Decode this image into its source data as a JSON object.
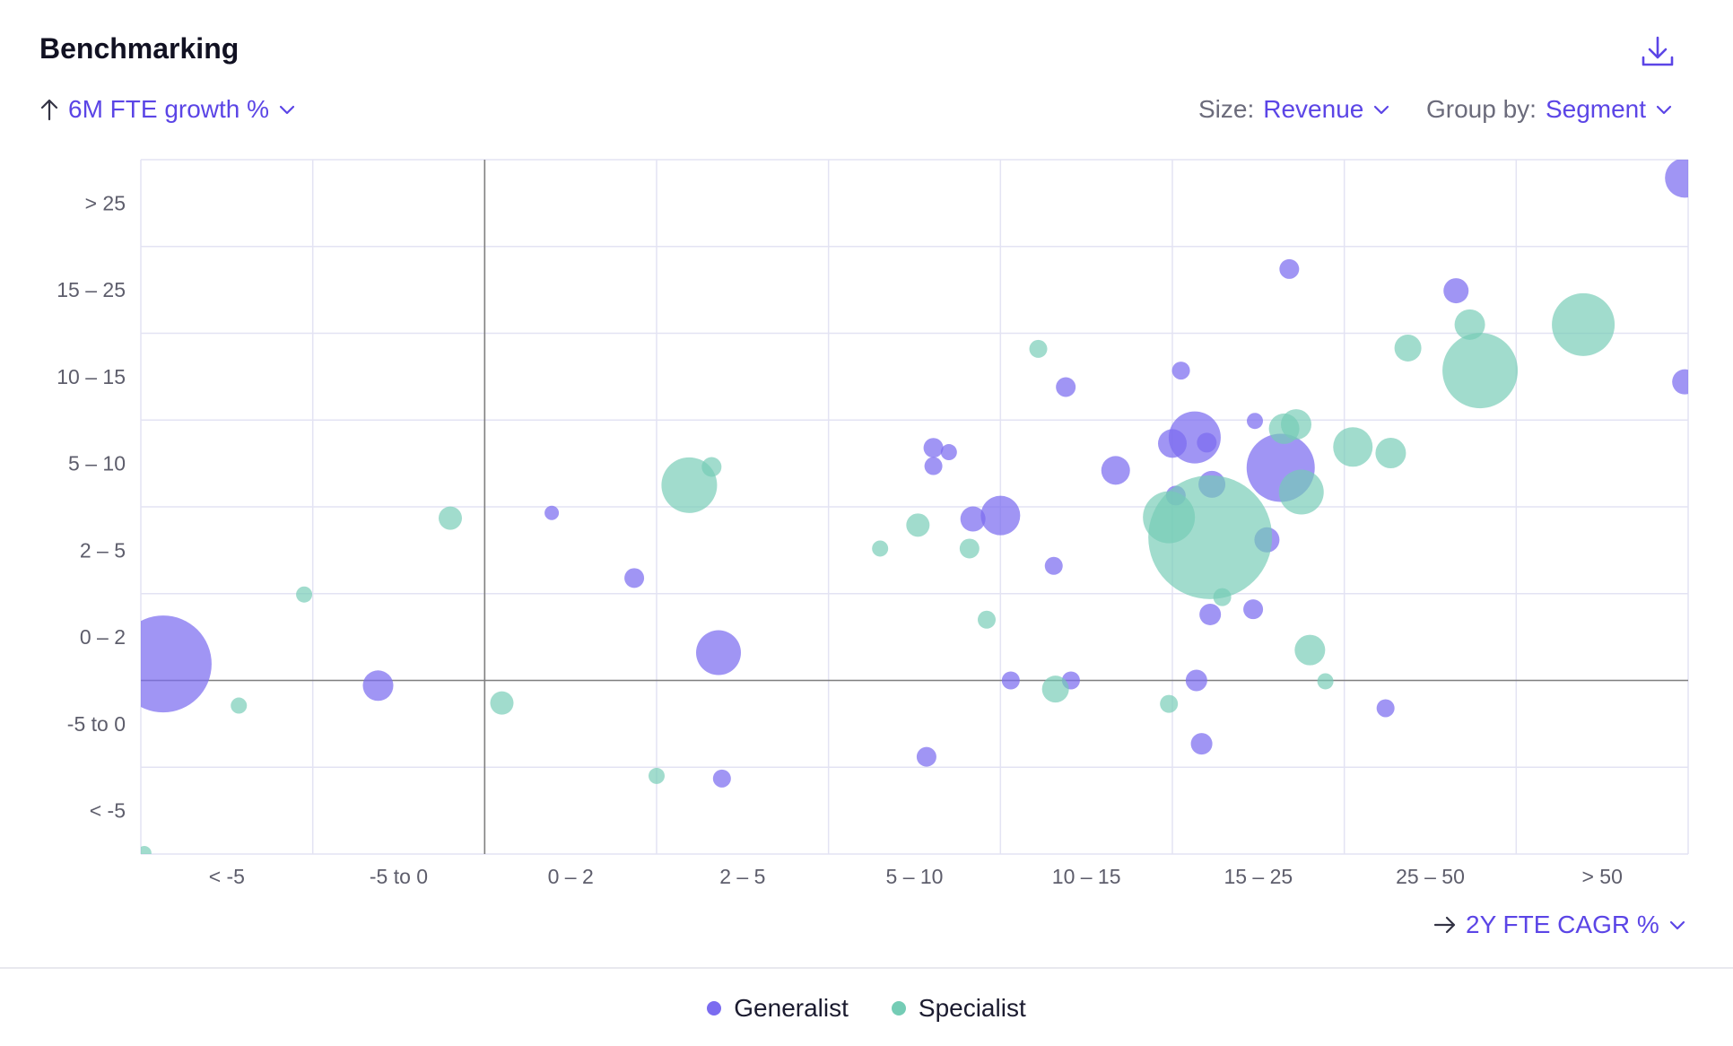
{
  "header": {
    "title": "Benchmarking",
    "download_icon": "download-icon"
  },
  "controls": {
    "y_metric": {
      "arrow_icon": "arrow-up-icon",
      "value": "6M FTE growth %"
    },
    "size": {
      "label": "Size:",
      "value": "Revenue"
    },
    "group_by": {
      "label": "Group by:",
      "value": "Segment"
    },
    "x_metric": {
      "arrow_icon": "arrow-right-icon",
      "value": "2Y FTE CAGR %"
    }
  },
  "colors": {
    "generalist": "#7b6cf0",
    "specialist": "#74ccb5",
    "accent": "#5b45e6",
    "grid": "#e3e3f3",
    "axis": "#808080"
  },
  "legend": [
    {
      "label": "Generalist",
      "color": "#7b6cf0"
    },
    {
      "label": "Specialist",
      "color": "#74ccb5"
    }
  ],
  "chart_data": {
    "type": "scatter",
    "xlabel": "2Y FTE CAGR %",
    "ylabel": "6M FTE growth %",
    "size_by": "Revenue",
    "x_categories": [
      "< -5",
      "-5 to 0",
      "0 – 2",
      "2 – 5",
      "5 – 10",
      "10 – 15",
      "15 – 25",
      "25 – 50",
      "> 50"
    ],
    "y_categories": [
      "< -5",
      "-5 to 0",
      "0 – 2",
      "2 – 5",
      "5 – 10",
      "10 – 15",
      "15 – 25",
      "> 25"
    ],
    "series": [
      {
        "name": "Generalist",
        "points": [
          {
            "x": 0.13,
            "y": 2.19,
            "r": 54
          },
          {
            "x": 1.38,
            "y": 1.94,
            "r": 17
          },
          {
            "x": 2.39,
            "y": 3.93,
            "r": 8
          },
          {
            "x": 2.87,
            "y": 3.18,
            "r": 11
          },
          {
            "x": 3.36,
            "y": 2.32,
            "r": 25
          },
          {
            "x": 3.38,
            "y": 0.87,
            "r": 10
          },
          {
            "x": 4.57,
            "y": 1.12,
            "r": 11
          },
          {
            "x": 4.61,
            "y": 4.68,
            "r": 11
          },
          {
            "x": 4.61,
            "y": 4.47,
            "r": 10
          },
          {
            "x": 4.7,
            "y": 4.63,
            "r": 9
          },
          {
            "x": 4.84,
            "y": 3.86,
            "r": 14
          },
          {
            "x": 5.0,
            "y": 3.9,
            "r": 22
          },
          {
            "x": 5.06,
            "y": 2.0,
            "r": 10
          },
          {
            "x": 5.31,
            "y": 3.32,
            "r": 10
          },
          {
            "x": 5.38,
            "y": 5.38,
            "r": 11
          },
          {
            "x": 5.41,
            "y": 2.0,
            "r": 10
          },
          {
            "x": 5.67,
            "y": 4.42,
            "r": 16
          },
          {
            "x": 6.0,
            "y": 4.73,
            "r": 16
          },
          {
            "x": 6.02,
            "y": 4.13,
            "r": 11
          },
          {
            "x": 6.05,
            "y": 5.57,
            "r": 10
          },
          {
            "x": 6.13,
            "y": 4.8,
            "r": 29
          },
          {
            "x": 6.14,
            "y": 2.0,
            "r": 12
          },
          {
            "x": 6.17,
            "y": 1.27,
            "r": 12
          },
          {
            "x": 6.2,
            "y": 4.74,
            "r": 11
          },
          {
            "x": 6.22,
            "y": 2.76,
            "r": 12
          },
          {
            "x": 6.23,
            "y": 4.26,
            "r": 15
          },
          {
            "x": 6.47,
            "y": 2.82,
            "r": 11
          },
          {
            "x": 6.48,
            "y": 4.99,
            "r": 9
          },
          {
            "x": 6.55,
            "y": 3.62,
            "r": 14
          },
          {
            "x": 6.63,
            "y": 4.45,
            "r": 38
          },
          {
            "x": 6.68,
            "y": 6.74,
            "r": 11
          },
          {
            "x": 7.24,
            "y": 1.68,
            "r": 10
          },
          {
            "x": 7.65,
            "y": 6.49,
            "r": 14
          },
          {
            "x": 8.98,
            "y": 7.79,
            "r": 22
          },
          {
            "x": 8.98,
            "y": 5.44,
            "r": 14
          }
        ]
      },
      {
        "name": "Specialist",
        "points": [
          {
            "x": 0.02,
            "y": 0.01,
            "r": 8
          },
          {
            "x": 0.57,
            "y": 1.71,
            "r": 9
          },
          {
            "x": 0.95,
            "y": 2.99,
            "r": 9
          },
          {
            "x": 1.8,
            "y": 3.87,
            "r": 13
          },
          {
            "x": 2.1,
            "y": 1.74,
            "r": 13
          },
          {
            "x": 3.0,
            "y": 0.9,
            "r": 9
          },
          {
            "x": 3.19,
            "y": 4.25,
            "r": 31
          },
          {
            "x": 3.32,
            "y": 4.46,
            "r": 11
          },
          {
            "x": 4.3,
            "y": 3.52,
            "r": 9
          },
          {
            "x": 4.52,
            "y": 3.79,
            "r": 13
          },
          {
            "x": 4.82,
            "y": 3.52,
            "r": 11
          },
          {
            "x": 4.92,
            "y": 2.7,
            "r": 10
          },
          {
            "x": 5.22,
            "y": 5.82,
            "r": 10
          },
          {
            "x": 5.32,
            "y": 1.9,
            "r": 15
          },
          {
            "x": 5.98,
            "y": 1.73,
            "r": 10
          },
          {
            "x": 5.98,
            "y": 3.88,
            "r": 29
          },
          {
            "x": 6.22,
            "y": 3.65,
            "r": 69
          },
          {
            "x": 6.29,
            "y": 2.96,
            "r": 10
          },
          {
            "x": 6.65,
            "y": 4.9,
            "r": 17
          },
          {
            "x": 6.72,
            "y": 4.95,
            "r": 17
          },
          {
            "x": 6.75,
            "y": 4.17,
            "r": 25
          },
          {
            "x": 6.8,
            "y": 2.35,
            "r": 17
          },
          {
            "x": 6.89,
            "y": 1.99,
            "r": 9
          },
          {
            "x": 7.05,
            "y": 4.69,
            "r": 22
          },
          {
            "x": 7.27,
            "y": 4.62,
            "r": 17
          },
          {
            "x": 7.37,
            "y": 5.83,
            "r": 15
          },
          {
            "x": 7.73,
            "y": 6.1,
            "r": 17
          },
          {
            "x": 7.79,
            "y": 5.57,
            "r": 42
          },
          {
            "x": 8.39,
            "y": 6.1,
            "r": 35
          }
        ]
      }
    ]
  }
}
